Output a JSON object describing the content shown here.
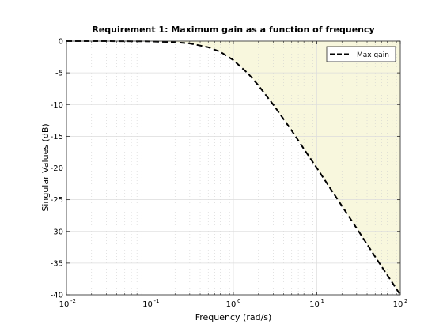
{
  "chart_data": {
    "type": "line",
    "title": "Requirement 1: Maximum gain as a function of frequency",
    "xlabel": "Frequency (rad/s)",
    "ylabel": "Singular Values (dB)",
    "xscale": "log",
    "xlim": [
      0.01,
      100
    ],
    "ylim": [
      -40,
      0
    ],
    "x_ticks": [
      {
        "base": "10",
        "exp": "-2",
        "value": 0.01
      },
      {
        "base": "10",
        "exp": "-1",
        "value": 0.1
      },
      {
        "base": "10",
        "exp": "0",
        "value": 1
      },
      {
        "base": "10",
        "exp": "1",
        "value": 10
      },
      {
        "base": "10",
        "exp": "2",
        "value": 100
      }
    ],
    "y_ticks": [
      {
        "label": "0",
        "value": 0
      },
      {
        "label": "-5",
        "value": -5
      },
      {
        "label": "-10",
        "value": -10
      },
      {
        "label": "-15",
        "value": -15
      },
      {
        "label": "-20",
        "value": -20
      },
      {
        "label": "-25",
        "value": -25
      },
      {
        "label": "-30",
        "value": -30
      },
      {
        "label": "-35",
        "value": -35
      },
      {
        "label": "-40",
        "value": -40
      }
    ],
    "grid": true,
    "legend_position": "top-right",
    "series": [
      {
        "name": "Max gain",
        "style": "dashed",
        "color": "#000000",
        "x": [
          0.01,
          0.03,
          0.1,
          0.2,
          0.3,
          0.5,
          0.7,
          1,
          1.5,
          2,
          3,
          5,
          7,
          10,
          20,
          30,
          50,
          70,
          100
        ],
        "y": [
          0,
          0,
          -0.04,
          -0.17,
          -0.37,
          -0.97,
          -1.7,
          -3.0,
          -5.1,
          -7.0,
          -10.0,
          -14.1,
          -17.0,
          -20.0,
          -26.0,
          -29.5,
          -34.0,
          -36.9,
          -40.0
        ]
      }
    ],
    "shaded_region": {
      "description_color": "#f8f7dd",
      "above_series": "Max gain"
    }
  }
}
